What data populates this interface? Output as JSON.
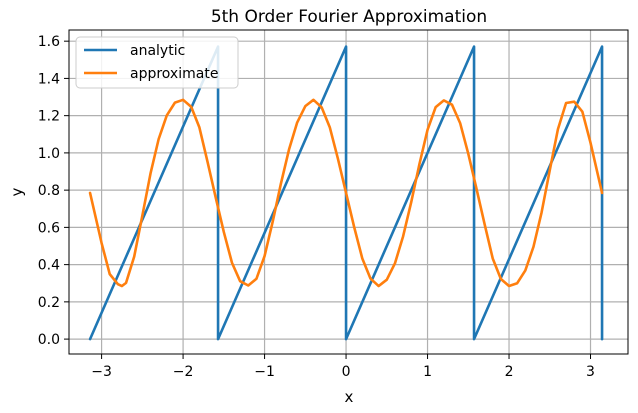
{
  "chart_data": {
    "type": "line",
    "title": "5th Order Fourier Approximation",
    "xlabel": "x",
    "ylabel": "y",
    "xlim": [
      -3.4,
      3.46
    ],
    "ylim": [
      -0.08,
      1.66
    ],
    "xticks": [
      -3,
      -2,
      -1,
      0,
      1,
      2,
      3
    ],
    "xtick_labels": [
      "−3",
      "−2",
      "−1",
      "0",
      "1",
      "2",
      "3"
    ],
    "yticks": [
      0.0,
      0.2,
      0.4,
      0.6,
      0.8,
      1.0,
      1.2,
      1.4,
      1.6
    ],
    "ytick_labels": [
      "0.0",
      "0.2",
      "0.4",
      "0.6",
      "0.8",
      "1.0",
      "1.2",
      "1.4",
      "1.6"
    ],
    "grid": true,
    "legend_position": "top-left",
    "series": [
      {
        "name": "analytic",
        "color": "#1f77b4",
        "x": [
          -3.1416,
          -1.5708,
          -1.5708,
          0.0,
          0.0,
          1.5708,
          1.5708,
          3.1416,
          3.1416
        ],
        "y": [
          0.0,
          1.5708,
          0.0,
          1.5708,
          0.0,
          1.5708,
          0.0,
          1.5708,
          0.0
        ]
      },
      {
        "name": "approximate",
        "color": "#ff7f0e",
        "x": [
          -3.1416,
          -3.0,
          -2.9,
          -2.8,
          -2.75,
          -2.7,
          -2.6,
          -2.5,
          -2.4,
          -2.3,
          -2.2,
          -2.1,
          -2.0,
          -1.9,
          -1.8,
          -1.7,
          -1.6,
          -1.5,
          -1.4,
          -1.3,
          -1.2,
          -1.1,
          -1.0,
          -0.9,
          -0.8,
          -0.7,
          -0.6,
          -0.5,
          -0.4,
          -0.3,
          -0.2,
          -0.1,
          0.0,
          0.1,
          0.2,
          0.3,
          0.4,
          0.5,
          0.6,
          0.7,
          0.8,
          0.9,
          1.0,
          1.1,
          1.2,
          1.3,
          1.4,
          1.5,
          1.6,
          1.7,
          1.8,
          1.9,
          2.0,
          2.1,
          2.2,
          2.3,
          2.4,
          2.5,
          2.6,
          2.7,
          2.8,
          2.9,
          3.0,
          3.1416
        ],
        "y": [
          0.785,
          0.516,
          0.349,
          0.295,
          0.285,
          0.302,
          0.443,
          0.663,
          0.889,
          1.074,
          1.201,
          1.27,
          1.285,
          1.247,
          1.137,
          0.952,
          0.761,
          0.575,
          0.41,
          0.311,
          0.288,
          0.324,
          0.446,
          0.631,
          0.834,
          1.018,
          1.163,
          1.251,
          1.285,
          1.245,
          1.138,
          0.969,
          0.785,
          0.601,
          0.432,
          0.325,
          0.285,
          0.319,
          0.407,
          0.552,
          0.736,
          0.939,
          1.124,
          1.246,
          1.282,
          1.259,
          1.16,
          0.995,
          0.809,
          0.618,
          0.433,
          0.323,
          0.285,
          0.3,
          0.369,
          0.496,
          0.681,
          0.907,
          1.127,
          1.268,
          1.275,
          1.221,
          1.054,
          0.785
        ]
      }
    ]
  }
}
